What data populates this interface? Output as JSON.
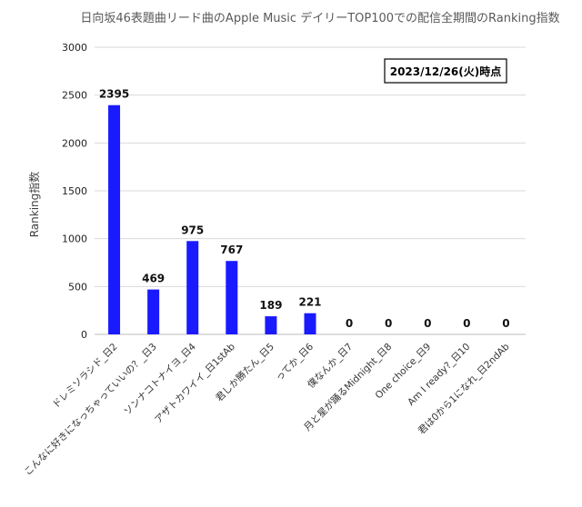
{
  "chart_data": {
    "type": "bar",
    "title": "日向坂46表題曲リード曲のApple Music デイリーTOP100での配信全期間のRanking指数",
    "ylabel": "Ranking指数",
    "xlabel": "",
    "ylim": [
      0,
      3000
    ],
    "yticks": [
      0,
      500,
      1000,
      1500,
      2000,
      2500,
      3000
    ],
    "grid": true,
    "annotation": "2023/12/26(火)時点",
    "bar_color": "#1a1aff",
    "categories": [
      "ドレミソラシド_日2",
      "こんなに好きになっちゃっていいの？_日3",
      "ソンナコトナイヨ_日4",
      "アザトカワイイ_日1stAb",
      "君しか勝たん_日5",
      "ってか_日6",
      "僕なんか_日7",
      "月と星が踊るMidnight_日8",
      "One choice_日9",
      "Am I ready?_日10",
      "君は0から1になれ_日2ndAb"
    ],
    "values": [
      2395,
      469,
      975,
      767,
      189,
      221,
      0,
      0,
      0,
      0,
      0
    ]
  }
}
